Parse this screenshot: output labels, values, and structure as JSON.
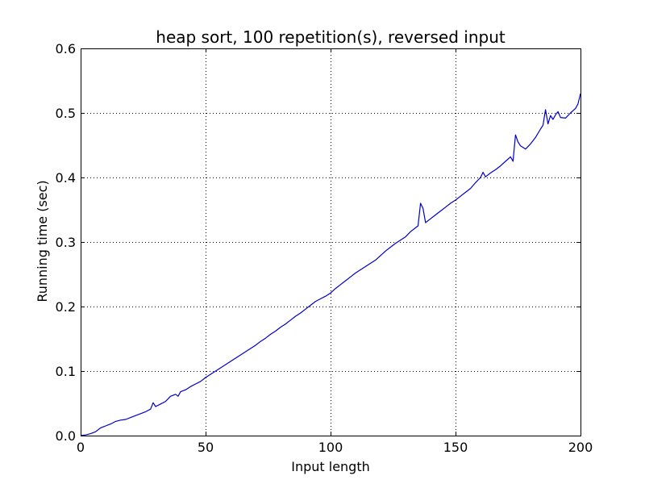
{
  "chart_data": {
    "type": "line",
    "title": "heap sort, 100 repetition(s), reversed input",
    "xlabel": "Input length",
    "ylabel": "Running time (sec)",
    "xlim": [
      0,
      200
    ],
    "ylim": [
      0.0,
      0.6
    ],
    "xticks": [
      0,
      50,
      100,
      150,
      200
    ],
    "xtick_labels": [
      "0",
      "50",
      "100",
      "150",
      "200"
    ],
    "yticks": [
      0.0,
      0.1,
      0.2,
      0.3,
      0.4,
      0.5,
      0.6
    ],
    "ytick_labels": [
      "0.0",
      "0.1",
      "0.2",
      "0.3",
      "0.4",
      "0.5",
      "0.6"
    ],
    "grid": true,
    "series": [
      {
        "color": "#0000cc",
        "points": [
          [
            0,
            0.0
          ],
          [
            2,
            0.001
          ],
          [
            4,
            0.003
          ],
          [
            6,
            0.006
          ],
          [
            8,
            0.012
          ],
          [
            10,
            0.015
          ],
          [
            12,
            0.018
          ],
          [
            14,
            0.022
          ],
          [
            16,
            0.024
          ],
          [
            18,
            0.025
          ],
          [
            20,
            0.028
          ],
          [
            22,
            0.031
          ],
          [
            24,
            0.034
          ],
          [
            26,
            0.037
          ],
          [
            28,
            0.041
          ],
          [
            29,
            0.051
          ],
          [
            30,
            0.045
          ],
          [
            32,
            0.049
          ],
          [
            34,
            0.053
          ],
          [
            36,
            0.061
          ],
          [
            38,
            0.064
          ],
          [
            39,
            0.061
          ],
          [
            40,
            0.068
          ],
          [
            42,
            0.071
          ],
          [
            44,
            0.076
          ],
          [
            46,
            0.08
          ],
          [
            48,
            0.084
          ],
          [
            50,
            0.09
          ],
          [
            52,
            0.095
          ],
          [
            54,
            0.1
          ],
          [
            56,
            0.105
          ],
          [
            58,
            0.11
          ],
          [
            60,
            0.115
          ],
          [
            62,
            0.12
          ],
          [
            64,
            0.125
          ],
          [
            66,
            0.13
          ],
          [
            68,
            0.135
          ],
          [
            70,
            0.14
          ],
          [
            72,
            0.146
          ],
          [
            74,
            0.151
          ],
          [
            76,
            0.157
          ],
          [
            78,
            0.162
          ],
          [
            80,
            0.168
          ],
          [
            82,
            0.173
          ],
          [
            84,
            0.179
          ],
          [
            86,
            0.185
          ],
          [
            88,
            0.19
          ],
          [
            90,
            0.196
          ],
          [
            92,
            0.202
          ],
          [
            94,
            0.208
          ],
          [
            96,
            0.212
          ],
          [
            98,
            0.216
          ],
          [
            100,
            0.221
          ],
          [
            102,
            0.228
          ],
          [
            104,
            0.234
          ],
          [
            106,
            0.24
          ],
          [
            108,
            0.246
          ],
          [
            110,
            0.252
          ],
          [
            112,
            0.257
          ],
          [
            114,
            0.262
          ],
          [
            116,
            0.267
          ],
          [
            118,
            0.272
          ],
          [
            120,
            0.279
          ],
          [
            122,
            0.286
          ],
          [
            124,
            0.292
          ],
          [
            126,
            0.298
          ],
          [
            128,
            0.303
          ],
          [
            130,
            0.308
          ],
          [
            132,
            0.316
          ],
          [
            134,
            0.322
          ],
          [
            135,
            0.325
          ],
          [
            136,
            0.36
          ],
          [
            137,
            0.352
          ],
          [
            138,
            0.33
          ],
          [
            140,
            0.336
          ],
          [
            142,
            0.342
          ],
          [
            144,
            0.348
          ],
          [
            146,
            0.354
          ],
          [
            148,
            0.36
          ],
          [
            150,
            0.365
          ],
          [
            152,
            0.371
          ],
          [
            154,
            0.377
          ],
          [
            156,
            0.383
          ],
          [
            158,
            0.392
          ],
          [
            160,
            0.4
          ],
          [
            161,
            0.408
          ],
          [
            162,
            0.401
          ],
          [
            164,
            0.407
          ],
          [
            166,
            0.412
          ],
          [
            168,
            0.418
          ],
          [
            170,
            0.425
          ],
          [
            172,
            0.432
          ],
          [
            173,
            0.425
          ],
          [
            174,
            0.466
          ],
          [
            175,
            0.455
          ],
          [
            176,
            0.449
          ],
          [
            178,
            0.444
          ],
          [
            180,
            0.452
          ],
          [
            182,
            0.462
          ],
          [
            184,
            0.475
          ],
          [
            185,
            0.481
          ],
          [
            186,
            0.505
          ],
          [
            187,
            0.483
          ],
          [
            188,
            0.496
          ],
          [
            189,
            0.49
          ],
          [
            190,
            0.497
          ],
          [
            191,
            0.502
          ],
          [
            192,
            0.493
          ],
          [
            194,
            0.492
          ],
          [
            196,
            0.5
          ],
          [
            198,
            0.507
          ],
          [
            199,
            0.514
          ],
          [
            200,
            0.53
          ]
        ]
      }
    ]
  }
}
